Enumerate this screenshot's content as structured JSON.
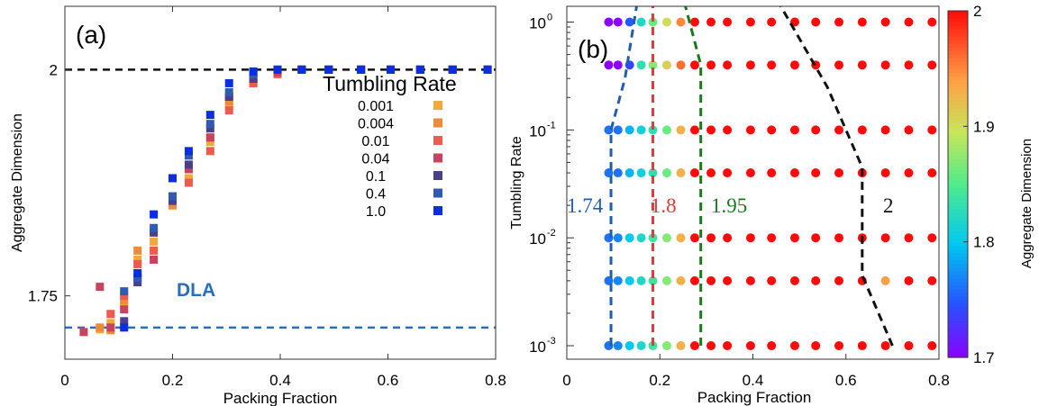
{
  "chart_data": [
    {
      "type": "scatter",
      "panel_label": "(a)",
      "xlabel": "Packing Fraction",
      "ylabel": "Aggregate Dimension",
      "xlim": [
        0,
        0.8
      ],
      "ylim": [
        1.68,
        2.07
      ],
      "xticks": [
        0,
        0.2,
        0.4,
        0.6,
        0.8
      ],
      "xtick_labels": [
        "0",
        "0.2",
        "0.4",
        "0.6",
        "0.8"
      ],
      "yticks": [
        1.75,
        2
      ],
      "ytick_labels": [
        "1.75",
        "2"
      ],
      "grid": false,
      "legend": {
        "title": "Tumbling Rate",
        "position": "right"
      },
      "reference_lines": [
        {
          "y": 2.0,
          "color": "#111111",
          "label": ""
        },
        {
          "y": 1.715,
          "color": "#2a6fb8",
          "label": "DLA"
        }
      ],
      "x": [
        0.035,
        0.065,
        0.085,
        0.11,
        0.135,
        0.165,
        0.2,
        0.23,
        0.27,
        0.305,
        0.35,
        0.395,
        0.44,
        0.49,
        0.55,
        0.605,
        0.66,
        0.72,
        0.785
      ],
      "series": [
        {
          "name": "0.001",
          "color": "#f2a93b",
          "values": [
            null,
            1.713,
            1.72,
            1.74,
            1.79,
            1.81,
            1.85,
            1.88,
            1.92,
            1.96,
            1.985,
            1.996,
            2.0,
            2.0,
            2.0,
            2.0,
            2.0,
            2.0,
            2.0
          ]
        },
        {
          "name": "0.004",
          "color": "#ef8a3a",
          "values": [
            null,
            1.715,
            1.712,
            1.745,
            1.8,
            1.82,
            1.85,
            1.89,
            1.925,
            1.965,
            1.99,
            1.998,
            2.0,
            2.0,
            2.0,
            2.0,
            2.0,
            2.0,
            2.0
          ]
        },
        {
          "name": "0.01",
          "color": "#ec5b4f",
          "values": [
            null,
            null,
            1.73,
            1.75,
            1.785,
            1.8,
            1.86,
            1.875,
            1.91,
            1.955,
            1.985,
            1.995,
            2.0,
            2.0,
            2.0,
            2.0,
            2.0,
            2.0,
            2.0
          ]
        },
        {
          "name": "0.04",
          "color": "#c9425f",
          "values": [
            1.71,
            1.76,
            1.715,
            1.735,
            1.77,
            1.79,
            1.855,
            1.89,
            1.925,
            1.97,
            1.99,
            1.997,
            2.0,
            2.0,
            2.0,
            2.0,
            2.0,
            2.0,
            2.0
          ]
        },
        {
          "name": "0.1",
          "color": "#4b3f8c",
          "values": [
            null,
            null,
            null,
            1.722,
            1.765,
            1.82,
            1.855,
            1.895,
            1.935,
            1.97,
            1.99,
            2.0,
            2.0,
            2.0,
            2.0,
            2.0,
            2.0,
            2.0,
            2.0
          ]
        },
        {
          "name": "0.4",
          "color": "#2f5cb0",
          "values": [
            null,
            null,
            null,
            1.755,
            1.77,
            1.825,
            1.86,
            1.905,
            1.94,
            1.975,
            1.995,
            2.0,
            2.0,
            2.0,
            2.0,
            2.0,
            2.0,
            2.0,
            2.0
          ]
        },
        {
          "name": "1.0",
          "color": "#0a2ee0",
          "values": [
            null,
            null,
            null,
            1.715,
            1.775,
            1.84,
            1.88,
            1.91,
            1.95,
            1.985,
            1.998,
            2.0,
            2.0,
            2.0,
            2.0,
            2.0,
            2.0,
            2.0,
            2.0
          ]
        }
      ]
    },
    {
      "type": "scatter",
      "panel_label": "(b)",
      "xlabel": "Packing Fraction",
      "ylabel": "Tumbling Rate",
      "xlim": [
        0,
        0.8
      ],
      "ylim": [
        0.00075,
        1.4
      ],
      "xscale": "linear",
      "yscale": "log",
      "xticks": [
        0,
        0.2,
        0.4,
        0.6,
        0.8
      ],
      "xtick_labels": [
        "0",
        "0.2",
        "0.4",
        "0.6",
        "0.8"
      ],
      "yticks": [
        0.001,
        0.01,
        0.1,
        1
      ],
      "ytick_labels": [
        {
          "base": "10",
          "exp": "-3"
        },
        {
          "base": "10",
          "exp": "-2"
        },
        {
          "base": "10",
          "exp": "-1"
        },
        {
          "base": "10",
          "exp": "0"
        }
      ],
      "grid": false,
      "x": [
        0.09,
        0.11,
        0.135,
        0.16,
        0.185,
        0.215,
        0.245,
        0.275,
        0.31,
        0.345,
        0.395,
        0.44,
        0.49,
        0.535,
        0.585,
        0.635,
        0.685,
        0.735,
        0.785
      ],
      "tumbling_rates": [
        1.0,
        0.4,
        0.1,
        0.04,
        0.01,
        0.004,
        0.001
      ],
      "dimension_rows": [
        [
          1.7,
          1.7,
          1.75,
          1.82,
          1.86,
          1.9,
          1.95,
          2.0,
          2.0,
          2.0,
          2.0,
          2.0,
          2.0,
          2.0,
          2.0,
          2.0,
          2.0,
          2.0,
          2.0
        ],
        [
          1.7,
          1.7,
          1.74,
          1.83,
          1.87,
          1.91,
          1.96,
          2.0,
          2.0,
          2.0,
          2.0,
          2.0,
          2.0,
          2.0,
          2.0,
          2.0,
          2.0,
          2.0,
          2.0
        ],
        [
          1.76,
          1.76,
          1.79,
          1.81,
          1.83,
          1.86,
          1.93,
          2.0,
          2.0,
          2.0,
          2.0,
          2.0,
          2.0,
          2.0,
          2.0,
          2.0,
          2.0,
          2.0,
          2.0
        ],
        [
          1.76,
          1.76,
          1.79,
          1.81,
          1.83,
          1.86,
          1.93,
          2.0,
          2.0,
          2.0,
          2.0,
          2.0,
          2.0,
          2.0,
          2.0,
          2.0,
          2.0,
          2.0,
          2.0
        ],
        [
          1.76,
          1.77,
          1.8,
          1.82,
          1.84,
          1.87,
          1.93,
          2.0,
          2.0,
          2.0,
          2.0,
          2.0,
          2.0,
          2.0,
          2.0,
          2.0,
          2.0,
          2.0,
          2.0
        ],
        [
          1.76,
          1.77,
          1.8,
          1.82,
          1.84,
          1.87,
          1.93,
          2.0,
          2.0,
          2.0,
          2.0,
          2.0,
          2.0,
          2.0,
          2.0,
          2.0,
          1.94,
          2.0,
          2.0
        ],
        [
          1.76,
          1.77,
          1.8,
          1.82,
          1.84,
          1.87,
          1.93,
          2.0,
          2.0,
          2.0,
          2.0,
          2.0,
          2.0,
          2.0,
          2.0,
          2.0,
          2.0,
          2.0,
          2.0
        ]
      ],
      "boundaries": [
        {
          "label": "1.74",
          "color": "#1f5faa",
          "points": [
            [
              0.095,
              0.001
            ],
            [
              0.095,
              0.1
            ],
            [
              0.125,
              0.3
            ],
            [
              0.15,
              1.4
            ]
          ]
        },
        {
          "label": "1.8",
          "color": "#e23a3a",
          "points": [
            [
              0.185,
              0.001
            ],
            [
              0.185,
              1.4
            ]
          ]
        },
        {
          "label": "1.95",
          "color": "#1a7a1a",
          "points": [
            [
              0.288,
              0.001
            ],
            [
              0.288,
              0.4
            ],
            [
              0.255,
              1.4
            ]
          ]
        },
        {
          "label": "2",
          "color": "#111111",
          "points": [
            [
              0.7,
              0.001
            ],
            [
              0.635,
              0.0045
            ],
            [
              0.635,
              0.045
            ],
            [
              0.56,
              0.25
            ],
            [
              0.46,
              1.4
            ]
          ]
        }
      ],
      "boundary_label_y": 0.02,
      "boundary_label_x": [
        0.0,
        0.18,
        0.31,
        0.68
      ],
      "colorbar": {
        "label": "Aggregate Dimension",
        "min": 1.7,
        "max": 2.0,
        "ticks": [
          1.7,
          1.8,
          1.9,
          2.0
        ],
        "tick_labels": [
          "1.7",
          "1.8",
          "1.9",
          "2"
        ]
      }
    }
  ]
}
